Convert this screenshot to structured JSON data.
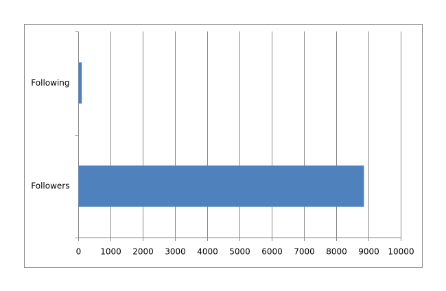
{
  "chart_data": {
    "type": "barh",
    "categories": [
      "Followers",
      "Following"
    ],
    "values": [
      8850,
      100
    ],
    "color": "#4f81bd",
    "xlim": [
      0,
      10000
    ],
    "xticks": [
      0,
      1000,
      2000,
      3000,
      4000,
      5000,
      6000,
      7000,
      8000,
      9000,
      10000
    ],
    "grid": true
  }
}
